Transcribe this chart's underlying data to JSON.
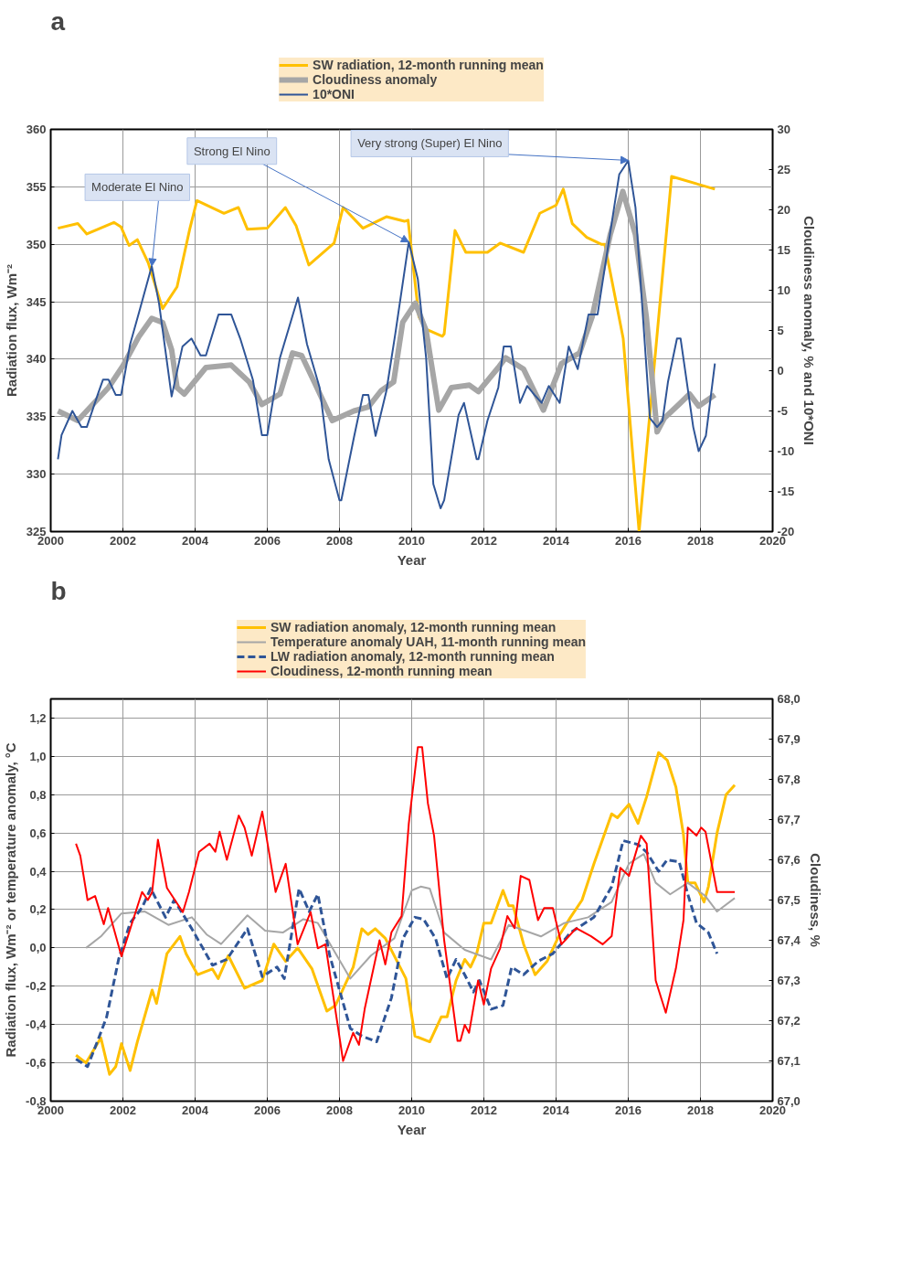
{
  "chart_data": [
    {
      "type": "line",
      "title": "a",
      "xlabel": "Year",
      "ylabel": "Radiation flux, Wm⁻²",
      "y2label": "Cloudiness anomaly, % and 10*ONI",
      "xlim": [
        2000,
        2020
      ],
      "xticks": [
        2000,
        2002,
        2004,
        2006,
        2008,
        2010,
        2012,
        2014,
        2016,
        2018,
        2020
      ],
      "ylim": [
        325,
        360
      ],
      "yticks": [
        325,
        330,
        335,
        340,
        345,
        350,
        355,
        360
      ],
      "y2lim": [
        -20,
        30
      ],
      "y2ticks": [
        -20,
        -15,
        -10,
        -5,
        0,
        5,
        10,
        15,
        20,
        25,
        30
      ],
      "grid": true,
      "legend": "top",
      "annotations": [
        {
          "text": "Moderate El Nino",
          "x": 2002.8,
          "y": 348.1
        },
        {
          "text": "Strong El Nino",
          "x": 2009.92,
          "y": 350.2
        },
        {
          "text": "Very strong (Super) El Nino",
          "x": 2016.0,
          "y": 357.3
        }
      ],
      "series": [
        {
          "name": "SW radiation, 12-month running mean",
          "color": "#ffc000",
          "x": [
            2000.2,
            2000.75,
            2001.0,
            2001.75,
            2001.95,
            2002.17,
            2002.4,
            2002.7,
            2003.1,
            2003.5,
            2003.85,
            2004.05,
            2004.8,
            2005.2,
            2005.45,
            2006.0,
            2006.5,
            2006.8,
            2007.15,
            2007.85,
            2008.1,
            2008.65,
            2009.3,
            2009.8,
            2009.9,
            2010.2,
            2010.4,
            2010.85,
            2010.9,
            2011.2,
            2011.5,
            2012.1,
            2012.45,
            2013.1,
            2013.55,
            2014.0,
            2014.2,
            2014.45,
            2014.85,
            2015.25,
            2015.35,
            2015.86,
            2016.3,
            2017.2,
            2018.4
          ],
          "values": [
            351.4,
            351.8,
            350.9,
            351.9,
            351.5,
            349.9,
            350.4,
            348.4,
            344.4,
            346.3,
            351.3,
            353.8,
            352.7,
            353.2,
            351.3,
            351.4,
            353.2,
            351.6,
            348.2,
            350.1,
            353.2,
            351.4,
            352.4,
            352.0,
            352.1,
            343.7,
            342.6,
            342.0,
            342.2,
            351.2,
            349.3,
            349.3,
            350.1,
            349.3,
            352.7,
            353.4,
            354.8,
            351.8,
            350.6,
            350.0,
            350.0,
            341.8,
            325.0,
            355.9,
            354.8
          ]
        },
        {
          "name": "Cloudiness anomaly",
          "color": "#a6a6a6",
          "axis": "y2",
          "x": [
            2000.2,
            2000.75,
            2001.6,
            2002.0,
            2002.45,
            2002.8,
            2003.1,
            2003.35,
            2003.5,
            2003.7,
            2004.3,
            2005.0,
            2005.5,
            2005.85,
            2006.35,
            2006.7,
            2006.95,
            2007.3,
            2007.8,
            2008.4,
            2008.8,
            2009.15,
            2009.5,
            2009.75,
            2010.1,
            2010.2,
            2010.4,
            2010.75,
            2011.1,
            2011.6,
            2011.85,
            2012.4,
            2012.6,
            2013.1,
            2013.65,
            2014.15,
            2014.65,
            2015.0,
            2015.5,
            2015.85,
            2016.2,
            2016.5,
            2016.8,
            2017.0,
            2017.4,
            2017.7,
            2017.95,
            2018.4
          ],
          "values": [
            -5.0,
            -6.2,
            -2.1,
            0.6,
            4.3,
            6.5,
            6.0,
            2.6,
            -2.1,
            -2.9,
            0.4,
            0.7,
            -1.4,
            -4.2,
            -2.9,
            2.2,
            1.9,
            -1.4,
            -6.2,
            -5.0,
            -4.5,
            -2.5,
            -1.4,
            6.0,
            8.4,
            7.3,
            5.0,
            -4.9,
            -2.1,
            -1.8,
            -2.6,
            0.4,
            1.6,
            0.2,
            -4.9,
            0.9,
            2.2,
            6.7,
            16.9,
            22.3,
            16.9,
            6.7,
            -7.6,
            -5.9,
            -4.2,
            -2.9,
            -4.4,
            -3.0
          ]
        },
        {
          "name": "10*ONI",
          "color": "#2f5597",
          "axis": "y2",
          "x": [
            2000.2,
            2000.3,
            2000.6,
            2000.85,
            2001.0,
            2001.3,
            2001.45,
            2001.6,
            2001.8,
            2001.95,
            2002.2,
            2002.45,
            2002.8,
            2003.0,
            2003.35,
            2003.65,
            2003.9,
            2004.15,
            2004.3,
            2004.65,
            2005.0,
            2005.25,
            2005.6,
            2005.85,
            2006.0,
            2006.35,
            2006.85,
            2007.1,
            2007.45,
            2007.7,
            2008.0,
            2008.05,
            2008.4,
            2008.65,
            2008.8,
            2009.0,
            2009.3,
            2009.55,
            2009.92,
            2010.17,
            2010.4,
            2010.6,
            2010.8,
            2010.9,
            2011.3,
            2011.45,
            2011.8,
            2011.85,
            2012.1,
            2012.4,
            2012.55,
            2012.75,
            2013.0,
            2013.2,
            2013.4,
            2013.6,
            2013.8,
            2014.1,
            2014.35,
            2014.6,
            2014.9,
            2015.15,
            2015.75,
            2016.0,
            2016.2,
            2016.6,
            2016.8,
            2016.95,
            2017.1,
            2017.35,
            2017.45,
            2017.8,
            2017.95,
            2018.15,
            2018.4
          ],
          "values": [
            -11.0,
            -8.0,
            -5.0,
            -7.0,
            -7.0,
            -3.0,
            -1.1,
            -1.1,
            -3.0,
            -3.0,
            3.3,
            7.3,
            13.0,
            8.4,
            -3.2,
            3.0,
            4.0,
            1.9,
            1.9,
            7.0,
            7.0,
            4.0,
            -1.1,
            -8.0,
            -8.0,
            1.6,
            9.1,
            3.3,
            -2.1,
            -11.0,
            -16.1,
            -16.1,
            -8.3,
            -3.0,
            -3.0,
            -8.1,
            -2.5,
            4.7,
            16.0,
            11.4,
            1.6,
            -14.1,
            -17.1,
            -16.1,
            -5.5,
            -4.0,
            -11.0,
            -11.0,
            -6.2,
            -2.1,
            3.0,
            3.0,
            -4.0,
            -1.9,
            -3.0,
            -4.0,
            -1.9,
            -4.0,
            3.0,
            0.2,
            7.0,
            7.0,
            24.4,
            26.1,
            20.3,
            -5.9,
            -7.0,
            -6.2,
            -1.4,
            4.0,
            4.0,
            -7.0,
            -10.0,
            -8.1,
            0.9
          ]
        }
      ]
    },
    {
      "type": "line",
      "title": "b",
      "xlabel": "Year",
      "ylabel": "Radiation flux, Wm⁻² or temperature anomaly, °C",
      "y2label": "Cloudiness, %",
      "xlim": [
        2000,
        2020
      ],
      "xticks": [
        2000,
        2002,
        2004,
        2006,
        2008,
        2010,
        2012,
        2014,
        2016,
        2018,
        2020
      ],
      "ylim": [
        -0.8,
        1.3
      ],
      "yticks": [
        {
          "value": -0.8,
          "label": "-0,8"
        },
        {
          "value": -0.6,
          "label": "-0,6"
        },
        {
          "value": -0.4,
          "label": "-0,4"
        },
        {
          "value": -0.2,
          "label": "-0,2"
        },
        {
          "value": 0,
          "label": "0,0"
        },
        {
          "value": 0.2,
          "label": "0,2"
        },
        {
          "value": 0.4,
          "label": "0,4"
        },
        {
          "value": 0.6,
          "label": "0,6"
        },
        {
          "value": 0.8,
          "label": "0,8"
        },
        {
          "value": 1.0,
          "label": "1,0"
        },
        {
          "value": 1.2,
          "label": "1,2"
        }
      ],
      "y2lim": [
        67.0,
        68.0
      ],
      "y2ticks": [
        {
          "value": 67.0,
          "label": "67,0"
        },
        {
          "value": 67.1,
          "label": "67,1"
        },
        {
          "value": 67.2,
          "label": "67,2"
        },
        {
          "value": 67.3,
          "label": "67,3"
        },
        {
          "value": 67.4,
          "label": "67,4"
        },
        {
          "value": 67.5,
          "label": "67,5"
        },
        {
          "value": 67.6,
          "label": "67,6"
        },
        {
          "value": 67.7,
          "label": "67,7"
        },
        {
          "value": 67.8,
          "label": "67,8"
        },
        {
          "value": 67.9,
          "label": "67,9"
        },
        {
          "value": 68.0,
          "label": "68,0"
        }
      ],
      "grid": true,
      "legend": "top",
      "series": [
        {
          "name": "SW radiation anomaly, 12-month running mean",
          "color": "#ffc000",
          "x": [
            2000.7,
            2000.98,
            2001.39,
            2001.63,
            2001.8,
            2001.96,
            2002.2,
            2002.4,
            2002.81,
            2002.93,
            2003.22,
            2003.58,
            2003.75,
            2004.07,
            2004.48,
            2004.64,
            2004.92,
            2005.37,
            2005.86,
            2006.18,
            2006.51,
            2006.84,
            2007.24,
            2007.65,
            2007.89,
            2008.38,
            2008.62,
            2008.79,
            2008.99,
            2009.27,
            2009.84,
            2010.09,
            2010.5,
            2010.82,
            2010.98,
            2011.23,
            2011.47,
            2011.63,
            2011.8,
            2012.0,
            2012.2,
            2012.53,
            2012.69,
            2012.81,
            2013.1,
            2013.42,
            2013.75,
            2014.07,
            2014.4,
            2014.72,
            2015.05,
            2015.54,
            2015.7,
            2016.02,
            2016.27,
            2016.51,
            2016.84,
            2017.08,
            2017.32,
            2017.53,
            2017.65,
            2017.85,
            2018.1,
            2018.22,
            2018.46,
            2018.71,
            2018.95
          ],
          "values": [
            -0.56,
            -0.6,
            -0.47,
            -0.66,
            -0.62,
            -0.5,
            -0.64,
            -0.49,
            -0.22,
            -0.29,
            -0.03,
            0.06,
            -0.03,
            -0.14,
            -0.11,
            -0.16,
            -0.04,
            -0.21,
            -0.17,
            0.02,
            -0.07,
            0.0,
            -0.11,
            -0.33,
            -0.3,
            -0.1,
            0.1,
            0.07,
            0.1,
            0.05,
            -0.16,
            -0.46,
            -0.49,
            -0.36,
            -0.36,
            -0.17,
            -0.06,
            -0.1,
            -0.03,
            0.13,
            0.13,
            0.3,
            0.22,
            0.22,
            0.02,
            -0.14,
            -0.07,
            0.06,
            0.16,
            0.25,
            0.44,
            0.7,
            0.68,
            0.75,
            0.65,
            0.79,
            1.02,
            0.98,
            0.84,
            0.59,
            0.34,
            0.34,
            0.24,
            0.32,
            0.6,
            0.8,
            0.85
          ]
        },
        {
          "name": "Temperature anomaly UAH, 11-month running mean",
          "color": "#a6a6a6",
          "x": [
            2000.98,
            2001.39,
            2001.96,
            2002.61,
            2003.26,
            2003.91,
            2004.32,
            2004.72,
            2005.45,
            2005.94,
            2006.43,
            2007.0,
            2007.4,
            2008.3,
            2008.87,
            2009.52,
            2010.0,
            2010.25,
            2010.5,
            2010.9,
            2011.47,
            2012.2,
            2012.69,
            2013.58,
            2014.23,
            2014.89,
            2015.54,
            2016.02,
            2016.43,
            2016.76,
            2017.16,
            2017.65,
            2018.14,
            2018.46,
            2018.95
          ],
          "values": [
            0.0,
            0.06,
            0.18,
            0.19,
            0.12,
            0.16,
            0.07,
            0.02,
            0.17,
            0.09,
            0.08,
            0.15,
            0.13,
            -0.16,
            -0.04,
            0.05,
            0.3,
            0.32,
            0.31,
            0.08,
            -0.01,
            -0.06,
            0.12,
            0.06,
            0.13,
            0.16,
            0.24,
            0.44,
            0.49,
            0.34,
            0.28,
            0.34,
            0.27,
            0.19,
            0.26
          ]
        },
        {
          "name": "LW radiation anomaly, 12-month running mean",
          "color": "#2f5597",
          "line_style": "dashed",
          "x": [
            2000.7,
            2001.02,
            2001.31,
            2001.55,
            2001.88,
            2002.2,
            2002.53,
            2002.77,
            2003.18,
            2003.42,
            2003.91,
            2004.48,
            2004.88,
            2005.45,
            2005.86,
            2006.27,
            2006.47,
            2006.88,
            2007.16,
            2007.4,
            2007.73,
            2008.3,
            2008.62,
            2009.03,
            2009.44,
            2009.76,
            2010.09,
            2010.33,
            2010.66,
            2010.98,
            2011.23,
            2011.47,
            2011.71,
            2011.88,
            2012.2,
            2012.53,
            2012.77,
            2013.1,
            2013.5,
            2013.91,
            2014.4,
            2015.05,
            2015.54,
            2015.86,
            2016.27,
            2016.51,
            2016.84,
            2017.08,
            2017.41,
            2017.65,
            2017.89,
            2018.22,
            2018.46
          ],
          "values": [
            -0.58,
            -0.62,
            -0.48,
            -0.36,
            -0.06,
            0.13,
            0.21,
            0.31,
            0.16,
            0.25,
            0.1,
            -0.09,
            -0.06,
            0.1,
            -0.15,
            -0.1,
            -0.16,
            0.31,
            0.19,
            0.28,
            -0.04,
            -0.42,
            -0.46,
            -0.49,
            -0.26,
            0.05,
            0.16,
            0.15,
            0.05,
            -0.16,
            -0.06,
            -0.14,
            -0.23,
            -0.17,
            -0.32,
            -0.3,
            -0.1,
            -0.14,
            -0.07,
            -0.03,
            0.08,
            0.16,
            0.32,
            0.56,
            0.54,
            0.5,
            0.4,
            0.46,
            0.45,
            0.28,
            0.13,
            0.08,
            -0.03
          ]
        },
        {
          "name": "Cloudiness, 12-month running mean",
          "color": "#ff0000",
          "axis": "y2",
          "x": [
            2000.7,
            2000.82,
            2001.02,
            2001.23,
            2001.47,
            2001.59,
            2001.96,
            2002.28,
            2002.53,
            2002.69,
            2002.81,
            2002.97,
            2003.22,
            2003.66,
            2003.83,
            2004.11,
            2004.4,
            2004.56,
            2004.68,
            2004.88,
            2005.21,
            2005.37,
            2005.57,
            2005.86,
            2006.23,
            2006.51,
            2006.84,
            2007.2,
            2007.4,
            2007.61,
            2008.1,
            2008.38,
            2008.54,
            2008.7,
            2009.11,
            2009.27,
            2009.44,
            2009.72,
            2009.92,
            2010.17,
            2010.29,
            2010.45,
            2010.62,
            2010.9,
            2011.27,
            2011.35,
            2011.47,
            2011.59,
            2011.84,
            2012.0,
            2012.2,
            2012.45,
            2012.65,
            2012.85,
            2013.02,
            2013.26,
            2013.5,
            2013.67,
            2013.91,
            2014.15,
            2014.56,
            2014.97,
            2015.29,
            2015.54,
            2015.78,
            2016.02,
            2016.35,
            2016.51,
            2016.76,
            2017.04,
            2017.32,
            2017.53,
            2017.65,
            2017.89,
            2018.02,
            2018.14,
            2018.46,
            2018.95
          ],
          "values": [
            67.64,
            67.61,
            67.5,
            67.51,
            67.44,
            67.48,
            67.36,
            67.45,
            67.52,
            67.5,
            67.52,
            67.65,
            67.53,
            67.47,
            67.52,
            67.62,
            67.64,
            67.62,
            67.67,
            67.6,
            67.71,
            67.68,
            67.61,
            67.72,
            67.52,
            67.59,
            67.39,
            67.47,
            67.38,
            67.39,
            67.1,
            67.17,
            67.14,
            67.23,
            67.4,
            67.34,
            67.42,
            67.46,
            67.69,
            67.88,
            67.88,
            67.74,
            67.66,
            67.4,
            67.15,
            67.15,
            67.19,
            67.17,
            67.3,
            67.24,
            67.33,
            67.38,
            67.46,
            67.43,
            67.56,
            67.55,
            67.45,
            67.48,
            67.48,
            67.39,
            67.43,
            67.41,
            67.39,
            67.41,
            67.58,
            67.56,
            67.66,
            67.64,
            67.3,
            67.22,
            67.33,
            67.45,
            67.68,
            67.66,
            67.68,
            67.67,
            67.52,
            67.52
          ]
        }
      ]
    }
  ]
}
